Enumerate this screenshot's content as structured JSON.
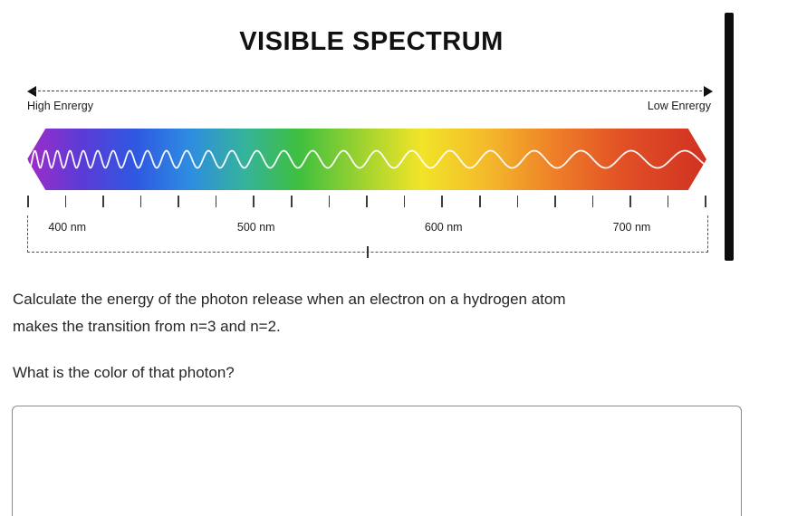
{
  "figure": {
    "title": "VISIBLE SPECTRUM",
    "high_energy_label": "High Enrergy",
    "low_energy_label": "Low Enrergy",
    "wavelength_labels": [
      "400 nm",
      "500 nm",
      "600 nm",
      "700 nm"
    ],
    "tick_count": 19,
    "axis_range_nm": [
      400,
      700
    ],
    "spectrum_gradient": [
      "#a02cc8 0%",
      "#5b3bd6 8%",
      "#2f58e2 16%",
      "#2e8de0 24%",
      "#35b39b 32%",
      "#3fbf3f 40%",
      "#a6d42f 50%",
      "#f2e428 58%",
      "#f4b82a 68%",
      "#ee7d28 78%",
      "#e14f26 88%",
      "#d03222 100%"
    ],
    "wave_color": "#ffffff"
  },
  "question": {
    "lines": [
      "Calculate the energy of the photon release when an electron on a hydrogen atom",
      "makes the transition from n=3 and n=2."
    ],
    "prompt": "What is the color of that photon?"
  },
  "answer_box": {
    "value": ""
  }
}
